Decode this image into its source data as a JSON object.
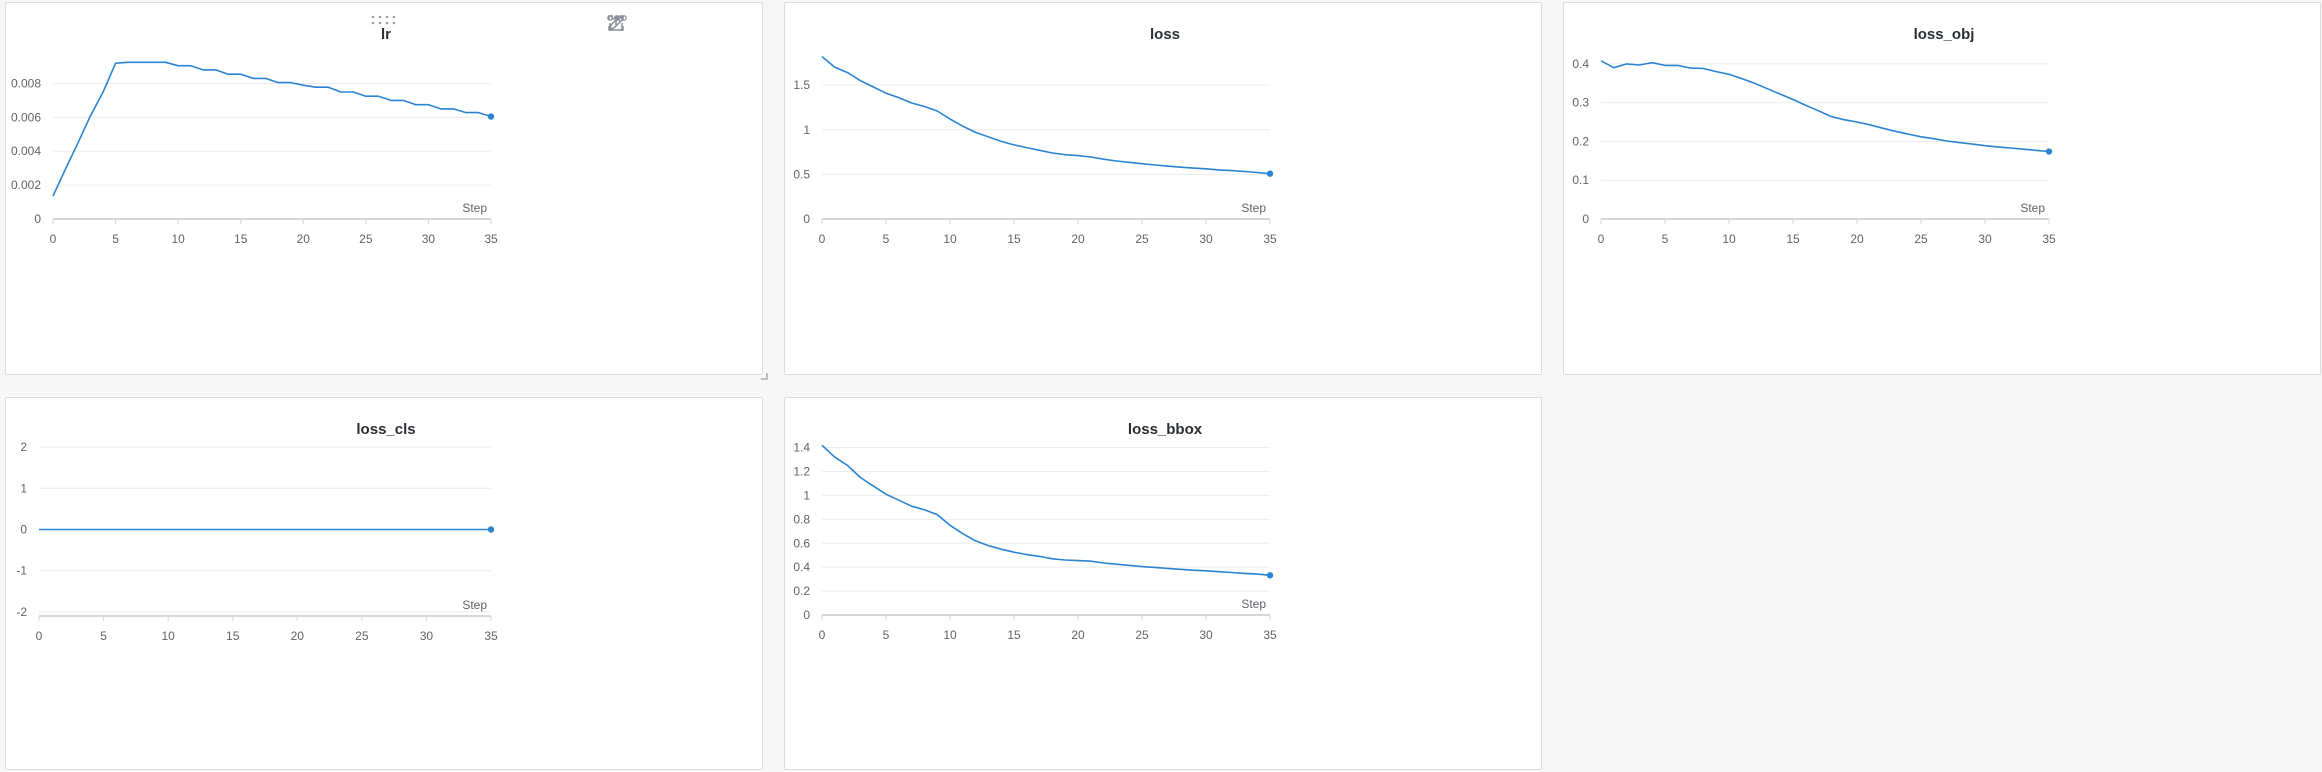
{
  "accent_color": "#2a84d2",
  "panel_tools": [
    "drag-handle-icon",
    "share-icon",
    "edit-icon",
    "fullscreen-icon",
    "more-options-icon"
  ],
  "chart_data": [
    {
      "type": "line",
      "title": "lr",
      "xlabel": "Step",
      "ylabel": "",
      "xlim": [
        0,
        35
      ],
      "ylim": [
        0,
        0.0098
      ],
      "xticks": [
        "0",
        "5",
        "10",
        "15",
        "20",
        "25",
        "30",
        "35"
      ],
      "yticks": [
        {
          "v": 0,
          "label": "0"
        },
        {
          "v": 0.002,
          "label": "0.002"
        },
        {
          "v": 0.004,
          "label": "0.004"
        },
        {
          "v": 0.006,
          "label": "0.006"
        },
        {
          "v": 0.008,
          "label": "0.008"
        }
      ],
      "grid": true,
      "x": [
        0,
        1,
        2,
        3,
        4,
        5,
        6,
        7,
        8,
        9,
        10,
        11,
        12,
        13,
        14,
        15,
        16,
        17,
        18,
        19,
        20,
        21,
        22,
        23,
        24,
        25,
        26,
        27,
        28,
        29,
        30,
        31,
        32,
        33,
        34,
        35
      ],
      "series": [
        {
          "values": [
            0.00135,
            0.00295,
            0.0045,
            0.0061,
            0.0075,
            0.0092,
            0.00925,
            0.00925,
            0.00925,
            0.00925,
            0.00905,
            0.00905,
            0.0088,
            0.0088,
            0.00855,
            0.00855,
            0.0083,
            0.0083,
            0.00805,
            0.00805,
            0.0079,
            0.00778,
            0.00778,
            0.0075,
            0.0075,
            0.00725,
            0.00725,
            0.007,
            0.007,
            0.00675,
            0.00675,
            0.0065,
            0.0065,
            0.00628,
            0.00628,
            0.00605
          ]
        }
      ]
    },
    {
      "type": "line",
      "title": "loss",
      "xlabel": "Step",
      "ylabel": "",
      "xlim": [
        0,
        35
      ],
      "ylim": [
        0,
        1.86
      ],
      "xticks": [
        "0",
        "5",
        "10",
        "15",
        "20",
        "25",
        "30",
        "35"
      ],
      "yticks": [
        {
          "v": 0,
          "label": "0"
        },
        {
          "v": 0.5,
          "label": "0.5"
        },
        {
          "v": 1,
          "label": "1"
        },
        {
          "v": 1.5,
          "label": "1.5"
        }
      ],
      "grid": true,
      "x": [
        0,
        1,
        2,
        3,
        4,
        5,
        6,
        7,
        8,
        9,
        10,
        11,
        12,
        13,
        14,
        15,
        16,
        17,
        18,
        19,
        20,
        21,
        22,
        23,
        24,
        25,
        26,
        27,
        28,
        29,
        30,
        31,
        32,
        33,
        34,
        35
      ],
      "series": [
        {
          "values": [
            1.82,
            1.7,
            1.64,
            1.55,
            1.48,
            1.41,
            1.36,
            1.3,
            1.26,
            1.21,
            1.12,
            1.04,
            0.97,
            0.92,
            0.87,
            0.83,
            0.8,
            0.77,
            0.74,
            0.72,
            0.71,
            0.695,
            0.67,
            0.65,
            0.635,
            0.62,
            0.605,
            0.593,
            0.58,
            0.57,
            0.562,
            0.55,
            0.542,
            0.532,
            0.521,
            0.508
          ]
        }
      ]
    },
    {
      "type": "line",
      "title": "loss_obj",
      "xlabel": "Step",
      "ylabel": "",
      "xlim": [
        0,
        35
      ],
      "ylim": [
        0,
        0.428
      ],
      "xticks": [
        "0",
        "5",
        "10",
        "15",
        "20",
        "25",
        "30",
        "35"
      ],
      "yticks": [
        {
          "v": 0,
          "label": "0"
        },
        {
          "v": 0.1,
          "label": "0.1"
        },
        {
          "v": 0.2,
          "label": "0.2"
        },
        {
          "v": 0.3,
          "label": "0.3"
        },
        {
          "v": 0.4,
          "label": "0.4"
        }
      ],
      "grid": true,
      "x": [
        0,
        1,
        2,
        3,
        4,
        5,
        6,
        7,
        8,
        9,
        10,
        11,
        12,
        13,
        14,
        15,
        16,
        17,
        18,
        19,
        20,
        21,
        22,
        23,
        24,
        25,
        26,
        27,
        28,
        29,
        30,
        31,
        32,
        33,
        34,
        35
      ],
      "series": [
        {
          "values": [
            0.408,
            0.39,
            0.4,
            0.397,
            0.403,
            0.396,
            0.396,
            0.389,
            0.388,
            0.38,
            0.373,
            0.362,
            0.35,
            0.336,
            0.322,
            0.308,
            0.293,
            0.279,
            0.264,
            0.256,
            0.25,
            0.243,
            0.234,
            0.226,
            0.219,
            0.212,
            0.207,
            0.201,
            0.197,
            0.193,
            0.189,
            0.186,
            0.183,
            0.18,
            0.177,
            0.174
          ]
        }
      ]
    },
    {
      "type": "line",
      "title": "loss_cls",
      "xlabel": "Step",
      "ylabel": "",
      "xlim": [
        0,
        35
      ],
      "ylim": [
        -2.1,
        2.1
      ],
      "xticks": [
        "0",
        "5",
        "10",
        "15",
        "20",
        "25",
        "30",
        "35"
      ],
      "yticks": [
        {
          "v": -2,
          "label": "-2"
        },
        {
          "v": -1,
          "label": "-1"
        },
        {
          "v": 0,
          "label": "0"
        },
        {
          "v": 1,
          "label": "1"
        },
        {
          "v": 2,
          "label": "2"
        }
      ],
      "grid": true,
      "x": [
        0,
        1,
        2,
        3,
        4,
        5,
        6,
        7,
        8,
        9,
        10,
        11,
        12,
        13,
        14,
        15,
        16,
        17,
        18,
        19,
        20,
        21,
        22,
        23,
        24,
        25,
        26,
        27,
        28,
        29,
        30,
        31,
        32,
        33,
        34,
        35
      ],
      "series": [
        {
          "values": [
            0,
            0,
            0,
            0,
            0,
            0,
            0,
            0,
            0,
            0,
            0,
            0,
            0,
            0,
            0,
            0,
            0,
            0,
            0,
            0,
            0,
            0,
            0,
            0,
            0,
            0,
            0,
            0,
            0,
            0,
            0,
            0,
            0,
            0,
            0,
            0
          ]
        }
      ]
    },
    {
      "type": "line",
      "title": "loss_bbox",
      "xlabel": "Step",
      "ylabel": "",
      "xlim": [
        0,
        35
      ],
      "ylim": [
        0,
        1.43
      ],
      "xticks": [
        "0",
        "5",
        "10",
        "15",
        "20",
        "25",
        "30",
        "35"
      ],
      "yticks": [
        {
          "v": 0,
          "label": "0"
        },
        {
          "v": 0.2,
          "label": "0.2"
        },
        {
          "v": 0.4,
          "label": "0.4"
        },
        {
          "v": 0.6,
          "label": "0.6"
        },
        {
          "v": 0.8,
          "label": "0.8"
        },
        {
          "v": 1,
          "label": "1"
        },
        {
          "v": 1.2,
          "label": "1.2"
        },
        {
          "v": 1.4,
          "label": "1.4"
        }
      ],
      "grid": true,
      "x": [
        0,
        1,
        2,
        3,
        4,
        5,
        6,
        7,
        8,
        9,
        10,
        11,
        12,
        13,
        14,
        15,
        16,
        17,
        18,
        19,
        20,
        21,
        22,
        23,
        24,
        25,
        26,
        27,
        28,
        29,
        30,
        31,
        32,
        33,
        34,
        35
      ],
      "series": [
        {
          "values": [
            1.42,
            1.32,
            1.25,
            1.15,
            1.08,
            1.01,
            0.96,
            0.91,
            0.88,
            0.84,
            0.75,
            0.68,
            0.62,
            0.58,
            0.55,
            0.525,
            0.505,
            0.49,
            0.47,
            0.46,
            0.455,
            0.45,
            0.435,
            0.425,
            0.415,
            0.405,
            0.398,
            0.39,
            0.382,
            0.375,
            0.37,
            0.362,
            0.355,
            0.348,
            0.342,
            0.332
          ]
        }
      ]
    }
  ]
}
